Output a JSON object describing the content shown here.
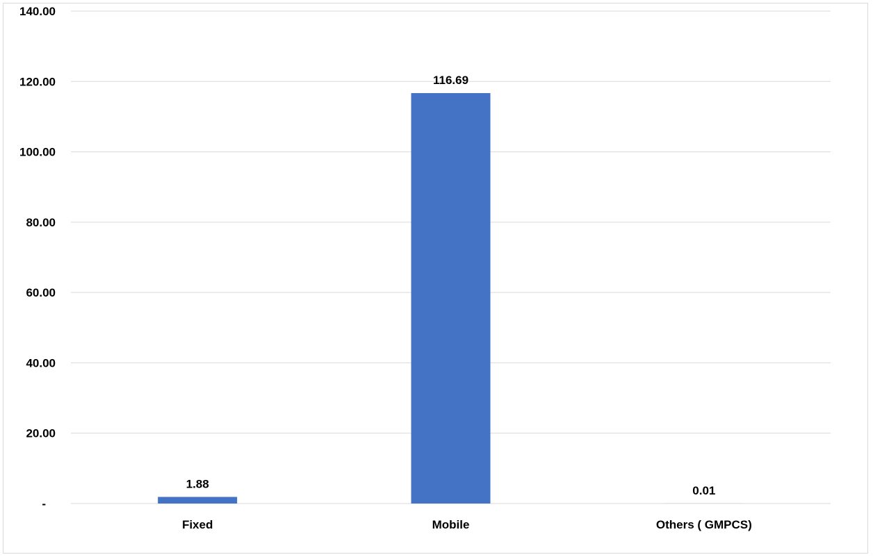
{
  "chart_data": {
    "type": "bar",
    "title": "",
    "xlabel": "",
    "ylabel": "",
    "categories": [
      "Fixed",
      "Mobile",
      "Others ( GMPCS)"
    ],
    "values": [
      1.88,
      116.69,
      0.01
    ],
    "data_labels": [
      "1.88",
      "116.69",
      "0.01"
    ],
    "ylim": [
      0,
      140
    ],
    "y_ticks": [
      0,
      20,
      40,
      60,
      80,
      100,
      120,
      140
    ],
    "y_tick_labels": [
      "-",
      "20.00",
      "40.00",
      "60.00",
      "80.00",
      "100.00",
      "120.00",
      "140.00"
    ],
    "grid": true,
    "legend": "none",
    "bar_color": "#4472C4",
    "gridline_color": "#d9d9d9"
  }
}
